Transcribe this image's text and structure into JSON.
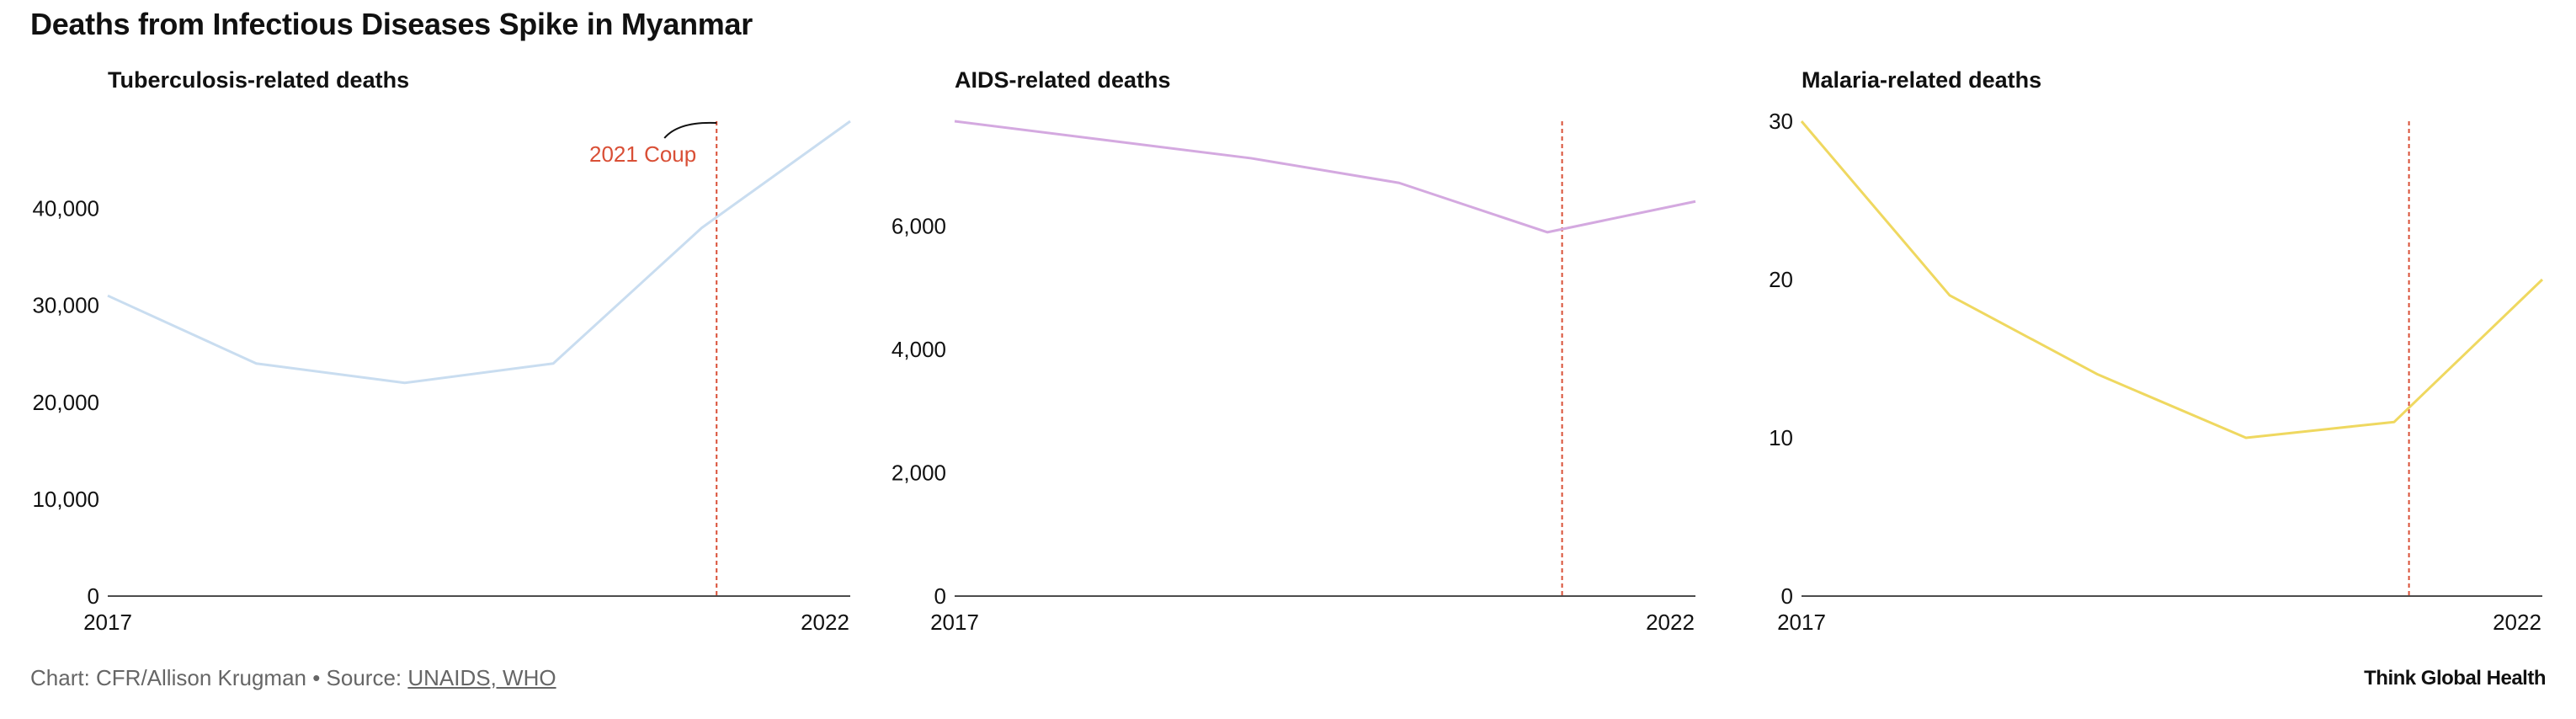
{
  "title": "Deaths from Infectious Diseases Spike in Myanmar",
  "footer": {
    "credit": "Chart: CFR/Allison Krugman • Source: ",
    "source_link": "UNAIDS, WHO",
    "brand": "Think Global Health"
  },
  "chart_data": [
    {
      "type": "line",
      "title": "Tuberculosis-related deaths",
      "x": [
        2017,
        2018,
        2019,
        2020,
        2021,
        2022
      ],
      "x_tick_labels": [
        "2017",
        "2022"
      ],
      "series": [
        {
          "values": [
            31000,
            24000,
            22000,
            24000,
            38000,
            49000
          ]
        }
      ],
      "ylim": [
        0,
        49000
      ],
      "y_ticks": [
        0,
        10000,
        20000,
        30000,
        40000
      ],
      "y_tick_labels": [
        "0",
        "10,000",
        "20,000",
        "30,000",
        "40,000"
      ],
      "reference_line": {
        "x": 2021.1,
        "label": "2021 Coup"
      },
      "color": "#c9ddf0",
      "reference_color": "#d94f36"
    },
    {
      "type": "line",
      "title": "AIDS-related deaths",
      "x": [
        2017,
        2018,
        2019,
        2020,
        2021,
        2022
      ],
      "x_tick_labels": [
        "2017",
        "2022"
      ],
      "series": [
        {
          "values": [
            7700,
            7400,
            7100,
            6700,
            5900,
            6400
          ]
        }
      ],
      "ylim": [
        0,
        7700
      ],
      "y_ticks": [
        0,
        2000,
        4000,
        6000
      ],
      "y_tick_labels": [
        "0",
        "2,000",
        "4,000",
        "6,000"
      ],
      "reference_line": {
        "x": 2021.1
      },
      "color": "#d4a9e0",
      "reference_color": "#d94f36"
    },
    {
      "type": "line",
      "title": "Malaria-related deaths",
      "x": [
        2017,
        2018,
        2019,
        2020,
        2021,
        2022
      ],
      "x_tick_labels": [
        "2017",
        "2022"
      ],
      "series": [
        {
          "values": [
            30,
            19,
            14,
            10,
            11,
            20
          ]
        }
      ],
      "ylim": [
        0,
        30
      ],
      "y_ticks": [
        0,
        10,
        20,
        30
      ],
      "y_tick_labels": [
        "0",
        "10",
        "20",
        "30"
      ],
      "reference_line": {
        "x": 2021.1
      },
      "color": "#efd860",
      "reference_color": "#d94f36"
    }
  ]
}
